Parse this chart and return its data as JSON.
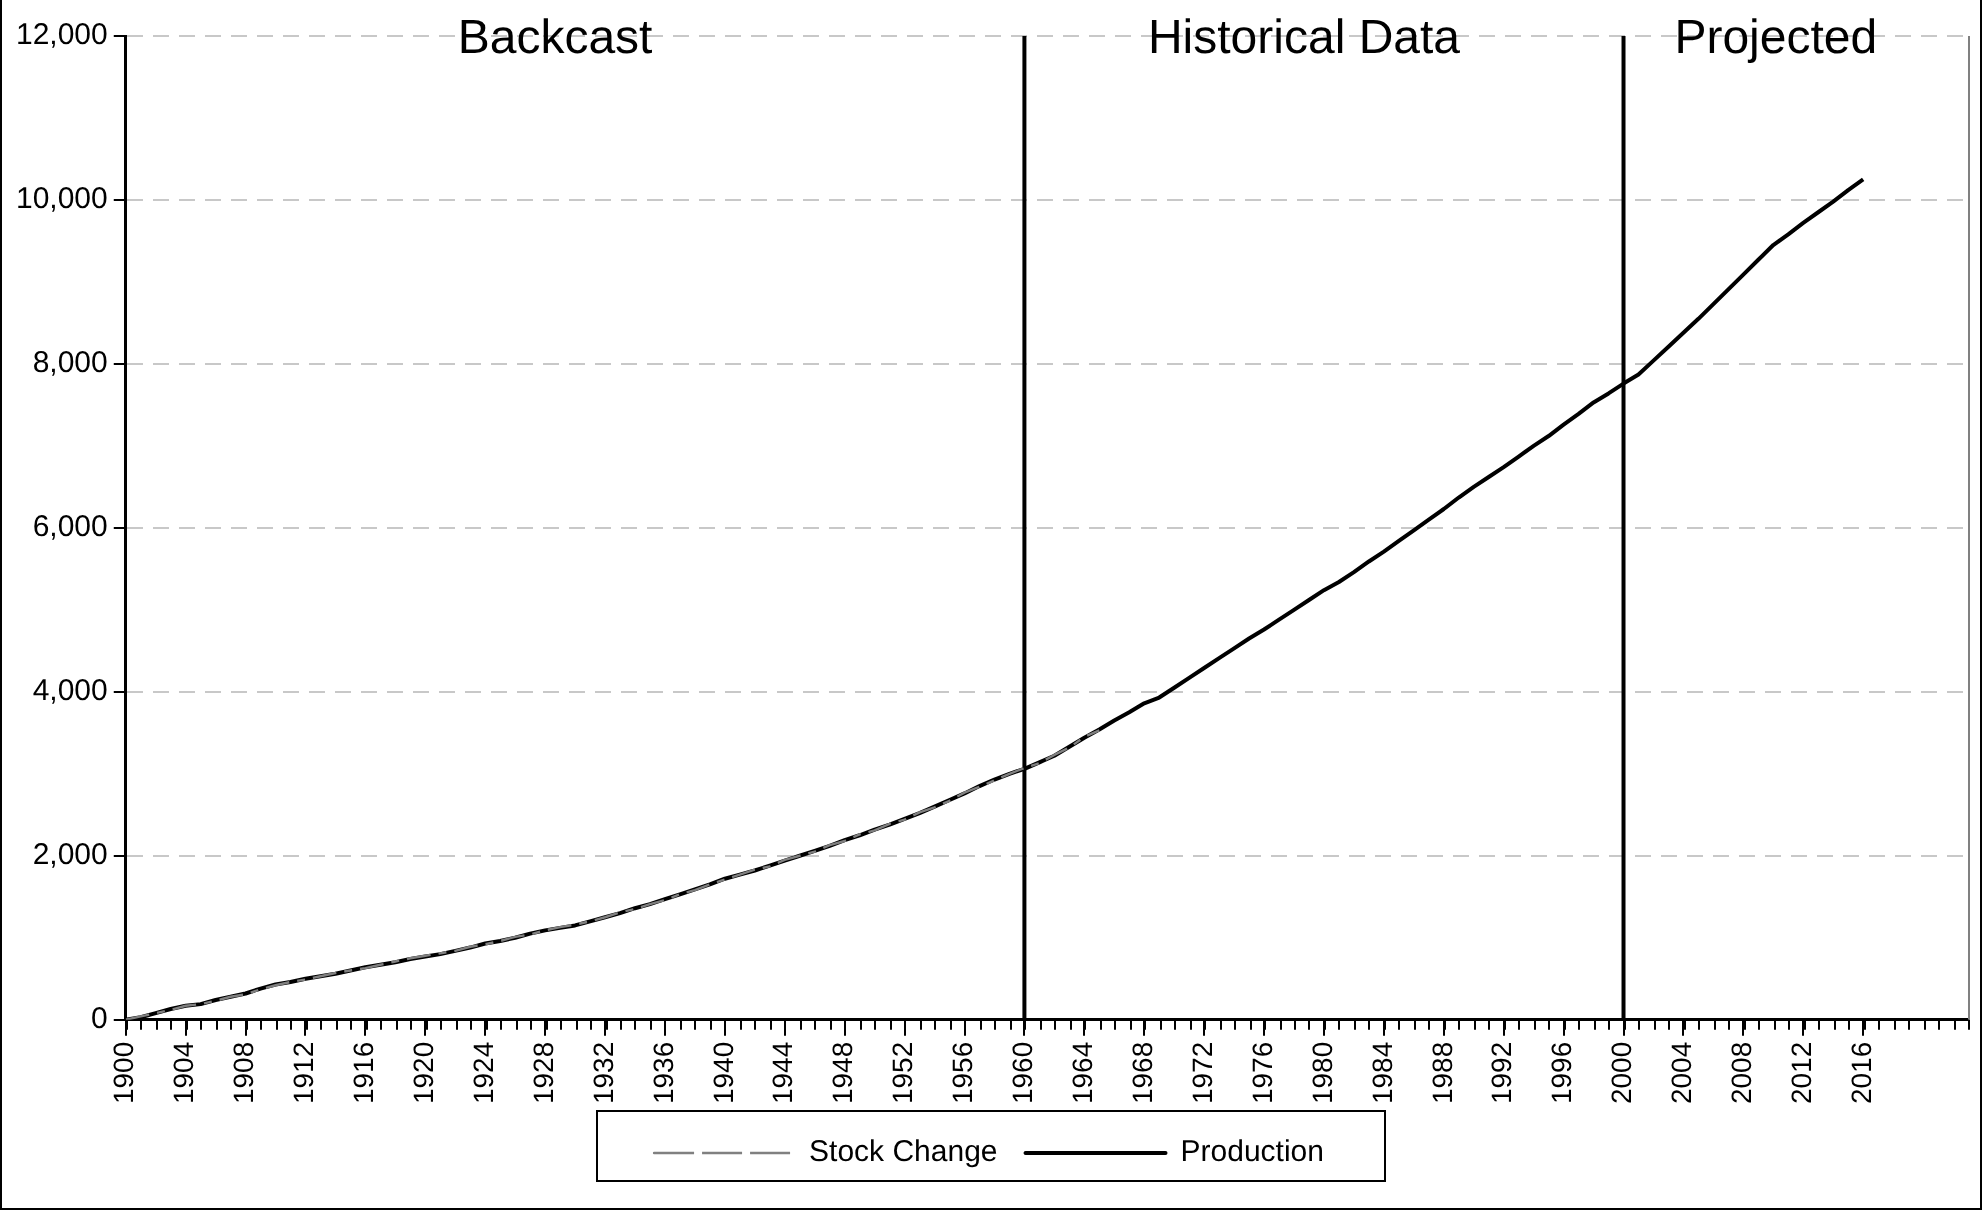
{
  "chart_data": {
    "type": "line",
    "x": [
      1900,
      1901,
      1902,
      1903,
      1904,
      1905,
      1906,
      1907,
      1908,
      1909,
      1910,
      1911,
      1912,
      1913,
      1914,
      1915,
      1916,
      1917,
      1918,
      1919,
      1920,
      1921,
      1922,
      1923,
      1924,
      1925,
      1926,
      1927,
      1928,
      1929,
      1930,
      1931,
      1932,
      1933,
      1934,
      1935,
      1936,
      1937,
      1938,
      1939,
      1940,
      1941,
      1942,
      1943,
      1944,
      1945,
      1946,
      1947,
      1948,
      1949,
      1950,
      1951,
      1952,
      1953,
      1954,
      1955,
      1956,
      1957,
      1958,
      1959,
      1960,
      1961,
      1962,
      1963,
      1964,
      1965,
      1966,
      1967,
      1968,
      1969,
      1970,
      1971,
      1972,
      1973,
      1974,
      1975,
      1976,
      1977,
      1978,
      1979,
      1980,
      1981,
      1982,
      1983,
      1984,
      1985,
      1986,
      1987,
      1988,
      1989,
      1990,
      1991,
      1992,
      1993,
      1994,
      1995,
      1996,
      1997,
      1998,
      1999,
      2000,
      2001,
      2002,
      2003,
      2004,
      2005,
      2006,
      2007,
      2008,
      2009,
      2010,
      2011,
      2012,
      2013,
      2014,
      2015,
      2016
    ],
    "series": [
      {
        "name": "Stock Change",
        "color": "#808080",
        "line_style": "dashed",
        "x": [
          1900,
          1901,
          1902,
          1903,
          1904,
          1905,
          1906,
          1907,
          1908,
          1909,
          1910,
          1911,
          1912,
          1913,
          1914,
          1915,
          1916,
          1917,
          1918,
          1919,
          1920,
          1921,
          1922,
          1923,
          1924,
          1925,
          1926,
          1927,
          1928,
          1929,
          1930,
          1931,
          1932,
          1933,
          1934,
          1935,
          1936,
          1937,
          1938,
          1939,
          1940,
          1941,
          1942,
          1943,
          1944,
          1945,
          1946,
          1947,
          1948,
          1949,
          1950,
          1951,
          1952,
          1953,
          1954,
          1955,
          1956,
          1957,
          1958,
          1959,
          1960,
          1961,
          1962,
          1963,
          1964,
          1965
        ],
        "values": [
          0,
          40,
          80,
          120,
          170,
          190,
          230,
          280,
          310,
          370,
          420,
          460,
          490,
          530,
          570,
          600,
          630,
          670,
          710,
          750,
          780,
          810,
          840,
          890,
          920,
          960,
          1010,
          1040,
          1090,
          1130,
          1160,
          1200,
          1250,
          1310,
          1350,
          1410,
          1460,
          1530,
          1580,
          1650,
          1710,
          1770,
          1830,
          1870,
          1950,
          2000,
          2050,
          2130,
          2180,
          2260,
          2310,
          2390,
          2440,
          2530,
          2590,
          2670,
          2770,
          2840,
          2920,
          3000,
          3070,
          3130,
          3230,
          3320,
          3450,
          3530
        ]
      },
      {
        "name": "Production",
        "color": "#000000",
        "line_style": "solid",
        "values": [
          0,
          30,
          80,
          130,
          170,
          190,
          240,
          280,
          320,
          380,
          430,
          460,
          500,
          530,
          560,
          600,
          640,
          670,
          700,
          740,
          770,
          800,
          840,
          880,
          930,
          960,
          1000,
          1050,
          1090,
          1120,
          1150,
          1200,
          1250,
          1300,
          1360,
          1410,
          1470,
          1530,
          1590,
          1650,
          1720,
          1770,
          1820,
          1880,
          1940,
          2000,
          2060,
          2120,
          2190,
          2250,
          2320,
          2380,
          2450,
          2520,
          2600,
          2680,
          2760,
          2850,
          2930,
          3000,
          3060,
          3140,
          3220,
          3330,
          3440,
          3540,
          3650,
          3750,
          3860,
          3930,
          4050,
          4170,
          4290,
          4410,
          4530,
          4650,
          4760,
          4880,
          5000,
          5120,
          5240,
          5340,
          5460,
          5590,
          5710,
          5840,
          5970,
          6100,
          6230,
          6370,
          6500,
          6620,
          6740,
          6870,
          7000,
          7120,
          7260,
          7390,
          7530,
          7640,
          7760,
          7870,
          8040,
          8210,
          8380,
          8550,
          8730,
          8910,
          9090,
          9270,
          9450,
          9580,
          9720,
          9850,
          9980,
          10120,
          10250
        ]
      }
    ],
    "xlim": [
      1900,
      2023
    ],
    "xticks": [
      1900,
      1904,
      1908,
      1912,
      1916,
      1920,
      1924,
      1928,
      1932,
      1936,
      1940,
      1944,
      1948,
      1952,
      1956,
      1960,
      1964,
      1968,
      1972,
      1976,
      1980,
      1984,
      1988,
      1992,
      1996,
      2000,
      2004,
      2008,
      2012,
      2016
    ],
    "ylim": [
      0,
      12000
    ],
    "yticks": [
      {
        "value": 0,
        "label": "0"
      },
      {
        "value": 2000,
        "label": "2,000"
      },
      {
        "value": 4000,
        "label": "4,000"
      },
      {
        "value": 6000,
        "label": "6,000"
      },
      {
        "value": 8000,
        "label": "8,000"
      },
      {
        "value": 10000,
        "label": "10,000"
      },
      {
        "value": 12000,
        "label": "12,000"
      }
    ],
    "ref_lines": [
      {
        "axis": "x",
        "value": 1960,
        "color": "#000000"
      },
      {
        "axis": "x",
        "value": 2000,
        "color": "#000000"
      }
    ],
    "annotations": [
      "Backcast",
      "Historical Data",
      "Projected"
    ],
    "grid": "y",
    "legend": "bottom",
    "marker": "none"
  }
}
